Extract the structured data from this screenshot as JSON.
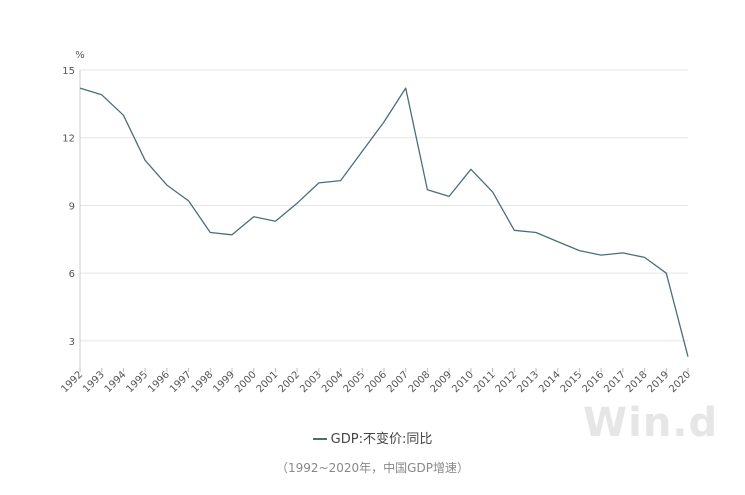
{
  "chart_data": {
    "type": "line",
    "unit": "%",
    "categories": [
      "1992",
      "1993",
      "1994",
      "1995",
      "1996",
      "1997",
      "1998",
      "1999",
      "2000",
      "2001",
      "2002",
      "2003",
      "2004",
      "2005",
      "2006",
      "2007",
      "2008",
      "2009",
      "2010",
      "2011",
      "2012",
      "2013",
      "2014",
      "2015",
      "2016",
      "2017",
      "2018",
      "2019",
      "2020"
    ],
    "series": [
      {
        "name": "GDP:不变价:同比",
        "color": "#4a6f78",
        "values": [
          14.2,
          13.9,
          13.0,
          11.0,
          9.9,
          9.2,
          7.8,
          7.7,
          8.5,
          8.3,
          9.1,
          10.0,
          10.1,
          11.4,
          12.7,
          14.2,
          9.7,
          9.4,
          10.6,
          9.6,
          7.9,
          7.8,
          7.4,
          7.0,
          6.8,
          6.9,
          6.7,
          6.0,
          2.3
        ]
      }
    ],
    "yticks": [
      3,
      6,
      9,
      12,
      15
    ],
    "ylim": [
      1.8,
      15
    ],
    "grid": true,
    "legend_position": "bottom-center"
  },
  "caption": "（1992~2020年，中国GDP增速）",
  "watermark": "Win.d"
}
